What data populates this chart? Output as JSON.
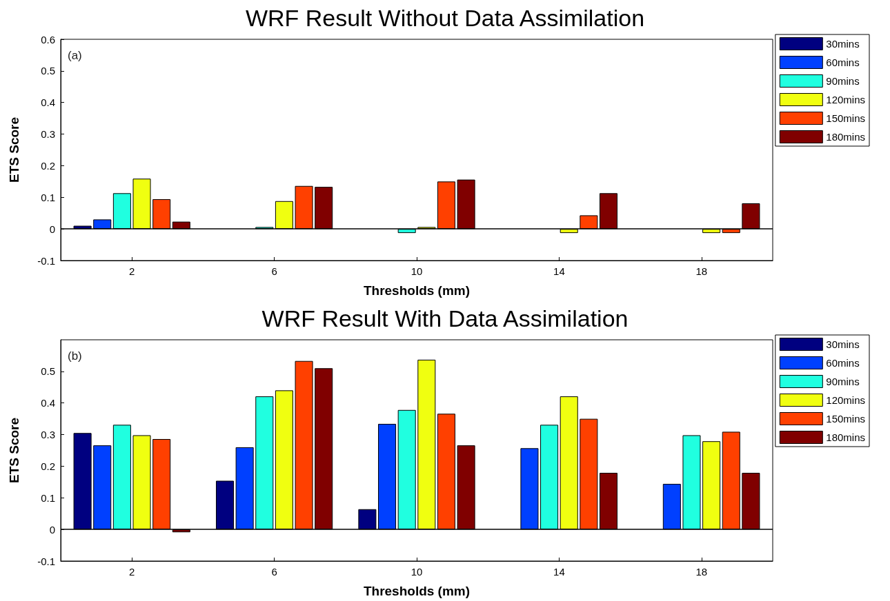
{
  "chart_data": [
    {
      "type": "bar",
      "title": "WRF Result Without Data Assimilation",
      "xlabel": "Thresholds (mm)",
      "ylabel": "ETS Score",
      "annotations": [
        "(a)"
      ],
      "categories": [
        "2",
        "6",
        "10",
        "14",
        "18"
      ],
      "series": [
        {
          "name": "30mins",
          "color": "#000080",
          "values": [
            0.01,
            null,
            null,
            null,
            null
          ]
        },
        {
          "name": "60mins",
          "color": "#0040ff",
          "values": [
            0.03,
            null,
            null,
            null,
            null
          ]
        },
        {
          "name": "90mins",
          "color": "#20ffe0",
          "values": [
            0.113,
            0.006,
            -0.013,
            null,
            null
          ]
        },
        {
          "name": "120mins",
          "color": "#f0ff10",
          "values": [
            0.159,
            0.088,
            0.006,
            -0.013,
            -0.013
          ]
        },
        {
          "name": "150mins",
          "color": "#ff4000",
          "values": [
            0.094,
            0.136,
            0.15,
            0.043,
            -0.013
          ]
        },
        {
          "name": "180mins",
          "color": "#800000",
          "values": [
            0.023,
            0.133,
            0.156,
            0.113,
            0.081
          ]
        }
      ],
      "ylim": [
        -0.1,
        0.6
      ],
      "yticks": [
        -0.1,
        0,
        0.1,
        0.2,
        0.3,
        0.4,
        0.5,
        0.6
      ],
      "ref_lines": [
        {
          "axis": "y",
          "value": 0,
          "color": "#000000"
        }
      ],
      "grid": false,
      "legend": "top right"
    },
    {
      "type": "bar",
      "title": "WRF Result With Data Assimilation",
      "xlabel": "Thresholds (mm)",
      "ylabel": "ETS Score",
      "annotations": [
        "(b)"
      ],
      "categories": [
        "2",
        "6",
        "10",
        "14",
        "18"
      ],
      "series": [
        {
          "name": "30mins",
          "color": "#000080",
          "values": [
            0.305,
            0.154,
            0.064,
            null,
            null
          ]
        },
        {
          "name": "60mins",
          "color": "#0040ff",
          "values": [
            0.266,
            0.26,
            0.334,
            0.257,
            0.144
          ]
        },
        {
          "name": "90mins",
          "color": "#20ffe0",
          "values": [
            0.331,
            0.421,
            0.378,
            0.331,
            0.298
          ]
        },
        {
          "name": "120mins",
          "color": "#f0ff10",
          "values": [
            0.298,
            0.44,
            0.537,
            0.421,
            0.279
          ]
        },
        {
          "name": "150mins",
          "color": "#ff4000",
          "values": [
            0.286,
            0.533,
            0.366,
            0.35,
            0.309
          ]
        },
        {
          "name": "180mins",
          "color": "#800000",
          "values": [
            -0.009,
            0.51,
            0.266,
            0.179,
            0.179
          ]
        }
      ],
      "ylim": [
        -0.1,
        0.6
      ],
      "yticks": [
        -0.1,
        0,
        0.1,
        0.2,
        0.3,
        0.4,
        0.5
      ],
      "ref_lines": [
        {
          "axis": "y",
          "value": 0,
          "color": "#000000"
        }
      ],
      "grid": false,
      "legend": "top right"
    }
  ]
}
